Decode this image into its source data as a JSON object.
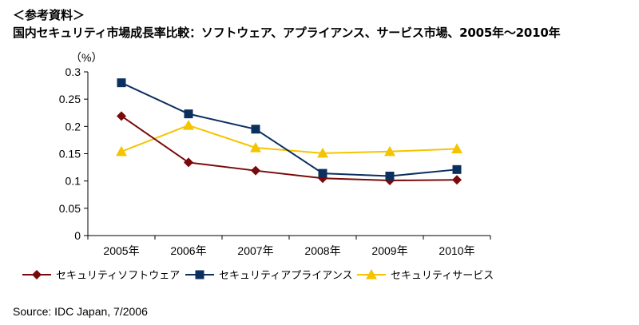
{
  "heading": "＜参考資料＞",
  "subheading": "国内セキュリティ市場成長率比較：ソフトウェア、アプライアンス、サービス市場、2005年～2010年",
  "source": "Source: IDC Japan, 7/2006",
  "chart_data": {
    "type": "line",
    "title": "国内セキュリティ市場成長率比較：ソフトウェア、アプライアンス、サービス市場、2005年～2010年",
    "ylabel": "（%）",
    "xlabel": "",
    "categories": [
      "2005年",
      "2006年",
      "2007年",
      "2008年",
      "2009年",
      "2010年"
    ],
    "ylim": [
      0,
      0.3
    ],
    "yticks": [
      0,
      0.05,
      0.1,
      0.15,
      0.2,
      0.25,
      0.3
    ],
    "ytick_labels": [
      "0",
      "0.05",
      "0.1",
      "0.15",
      "0.2",
      "0.25",
      "0.3"
    ],
    "grid": false,
    "legend_position": "bottom",
    "series": [
      {
        "name": "セキュリティソフトウェア",
        "color": "#7a0a0a",
        "marker": "diamond",
        "values": [
          0.219,
          0.134,
          0.119,
          0.105,
          0.101,
          0.102
        ]
      },
      {
        "name": "セキュリティアプライアンス",
        "color": "#0b2f5e",
        "marker": "square",
        "values": [
          0.28,
          0.223,
          0.195,
          0.114,
          0.109,
          0.121
        ]
      },
      {
        "name": "セキュリティサービス",
        "color": "#f5c400",
        "marker": "triangle",
        "values": [
          0.154,
          0.202,
          0.161,
          0.151,
          0.154,
          0.159
        ]
      }
    ]
  }
}
